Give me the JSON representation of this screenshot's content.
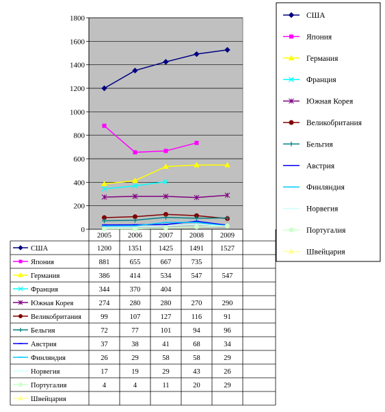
{
  "chart_data": {
    "type": "line",
    "categories": [
      "2005",
      "2006",
      "2007",
      "2008",
      "2009"
    ],
    "ylim": [
      0,
      1800
    ],
    "yticks": [
      0,
      200,
      400,
      600,
      800,
      1000,
      1200,
      1400,
      1600,
      1800
    ],
    "grid": "horizontal",
    "plot_background": "#c0c0c0",
    "legend_position": "right",
    "series": [
      {
        "name": "США",
        "color": "#000080",
        "marker": "diamond",
        "values": [
          1200,
          1351,
          1425,
          1491,
          1527
        ]
      },
      {
        "name": "Япония",
        "color": "#ff00ff",
        "marker": "square",
        "values": [
          881,
          655,
          667,
          735,
          null
        ]
      },
      {
        "name": "Германия",
        "color": "#ffff00",
        "marker": "triangle",
        "values": [
          386,
          414,
          534,
          547,
          547
        ]
      },
      {
        "name": "Франция",
        "color": "#00ffff",
        "marker": "x",
        "values": [
          344,
          370,
          404,
          null,
          null
        ]
      },
      {
        "name": "Южная Корея",
        "color": "#800080",
        "marker": "star",
        "values": [
          274,
          280,
          280,
          270,
          290
        ]
      },
      {
        "name": "Великобритания",
        "color": "#800000",
        "marker": "circle",
        "values": [
          99,
          107,
          127,
          116,
          91
        ]
      },
      {
        "name": "Бельгия",
        "color": "#008080",
        "marker": "plus",
        "values": [
          72,
          77,
          101,
          94,
          96
        ]
      },
      {
        "name": "Австрия",
        "color": "#0000ff",
        "marker": "dash",
        "values": [
          37,
          38,
          41,
          68,
          34
        ]
      },
      {
        "name": "Финляндия",
        "color": "#00ccff",
        "marker": "dash",
        "values": [
          26,
          29,
          58,
          58,
          29
        ]
      },
      {
        "name": "Норвегия",
        "color": "#ccffff",
        "marker": "none",
        "values": [
          17,
          19,
          29,
          43,
          26
        ]
      },
      {
        "name": "Португалия",
        "color": "#ccffcc",
        "marker": "circle",
        "values": [
          4,
          4,
          11,
          20,
          29
        ]
      },
      {
        "name": "Швейцария",
        "color": "#ffff99",
        "marker": "triangle",
        "values": [
          null,
          null,
          null,
          null,
          null
        ]
      }
    ]
  }
}
